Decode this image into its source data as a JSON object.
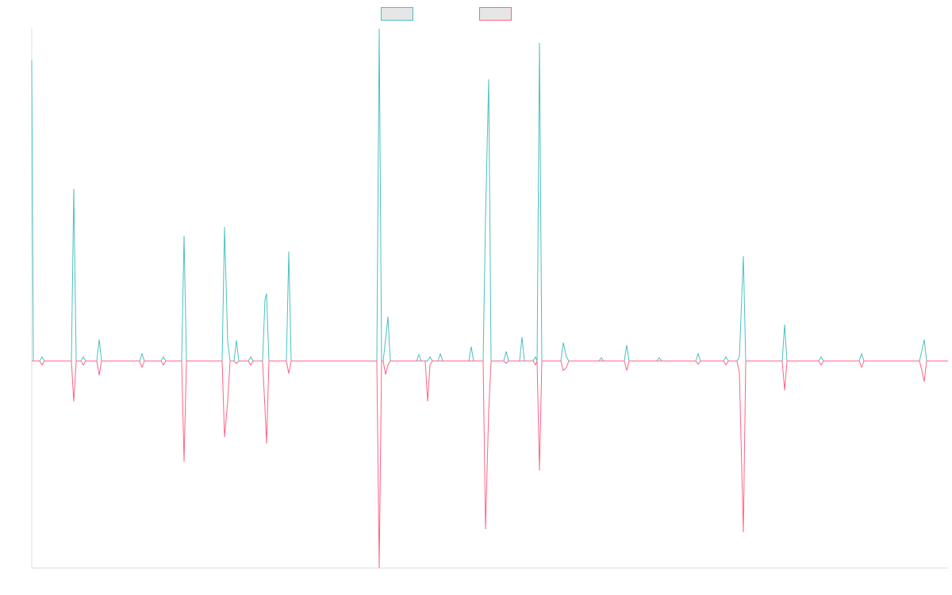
{
  "chart_data": {
    "type": "line",
    "legend": "top",
    "grid": false,
    "xlim": [
      0,
      1155
    ],
    "ylim": [
      -261,
      419
    ],
    "x": [
      0,
      2,
      10,
      13,
      16,
      50,
      53,
      56,
      62,
      65,
      68,
      82,
      85,
      88,
      136,
      139,
      142,
      163,
      166,
      169,
      189,
      192,
      195,
      240,
      243,
      247,
      250,
      255,
      258,
      261,
      273,
      276,
      279,
      291,
      294,
      296,
      299,
      321,
      324,
      327,
      435,
      438,
      441,
      443,
      446,
      449,
      452,
      485,
      488,
      491,
      496,
      499,
      502,
      505,
      512,
      515,
      518,
      551,
      554,
      557,
      569,
      572,
      576,
      579,
      595,
      598,
      601,
      615,
      618,
      621,
      632,
      635,
      637,
      640,
      643,
      667,
      670,
      674,
      677,
      715,
      718,
      721,
      747,
      750,
      753,
      788,
      791,
      794,
      837,
      840,
      843,
      872,
      875,
      878,
      889,
      892,
      897,
      900,
      946,
      949,
      952,
      992,
      995,
      998,
      1043,
      1046,
      1049,
      1119,
      1122,
      1125,
      1128,
      1155
    ],
    "series": [
      {
        "color": "#4bc0c0",
        "values": [
          379,
          0,
          0,
          5,
          0,
          0,
          217,
          0,
          0,
          5,
          0,
          0,
          27,
          0,
          0,
          9,
          0,
          0,
          5,
          0,
          0,
          158,
          0,
          0,
          169,
          25,
          0,
          0,
          26,
          0,
          0,
          5,
          0,
          0,
          77,
          85,
          0,
          0,
          138,
          0,
          0,
          419,
          0,
          0,
          27,
          56,
          0,
          0,
          8,
          0,
          0,
          0,
          5,
          0,
          0,
          9,
          0,
          0,
          18,
          0,
          0,
          180,
          355,
          0,
          0,
          12,
          0,
          0,
          30,
          0,
          0,
          5,
          0,
          401,
          0,
          0,
          23,
          5,
          0,
          0,
          4,
          0,
          0,
          20,
          0,
          0,
          4,
          0,
          0,
          9,
          0,
          0,
          5,
          0,
          0,
          5,
          132,
          0,
          0,
          46,
          0,
          0,
          5,
          0,
          0,
          9,
          0,
          0,
          13,
          27,
          0,
          0
        ]
      },
      {
        "color": "#ff6384",
        "values": [
          0,
          0,
          0,
          -5,
          0,
          0,
          -51,
          0,
          0,
          -5,
          0,
          0,
          -18,
          0,
          0,
          -8,
          0,
          0,
          -5,
          0,
          0,
          -127,
          0,
          0,
          -96,
          -51,
          0,
          0,
          -3,
          0,
          0,
          -5,
          0,
          0,
          -60,
          -104,
          0,
          0,
          -16,
          0,
          0,
          -261,
          0,
          0,
          -17,
          -5,
          0,
          0,
          0,
          0,
          0,
          -51,
          -5,
          0,
          0,
          0,
          0,
          0,
          0,
          0,
          0,
          -212,
          -63,
          0,
          0,
          -3,
          0,
          0,
          0,
          0,
          0,
          -5,
          0,
          -138,
          0,
          0,
          -12,
          -8,
          0,
          0,
          0,
          0,
          0,
          -12,
          0,
          0,
          0,
          0,
          0,
          -4,
          0,
          0,
          -5,
          0,
          0,
          -15,
          -216,
          0,
          0,
          -37,
          0,
          0,
          -5,
          0,
          0,
          -8,
          0,
          0,
          -12,
          -26,
          0,
          0
        ]
      }
    ]
  }
}
